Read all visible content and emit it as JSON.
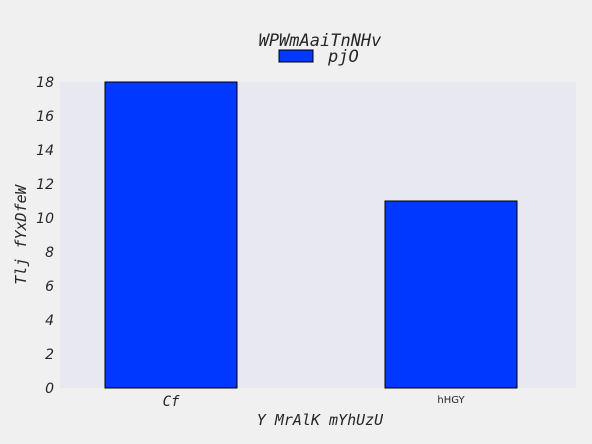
{
  "chart_data": {
    "type": "bar",
    "title": "WPWmAaiTnNHv",
    "xlabel": "Y MrAlK mYhUzU",
    "ylabel": "Tlj fYxDfeW",
    "categories": [
      "Cf",
      "hHGY"
    ],
    "series": [
      {
        "name": "pjO",
        "values": [
          18,
          11
        ],
        "color": "#0038ff"
      }
    ],
    "ylim": [
      0,
      18
    ],
    "yticks": [
      0,
      2,
      4,
      6,
      8,
      10,
      12,
      14,
      16,
      18
    ],
    "grid": false,
    "legend": "top-center",
    "plot_background": "#e8e8f0",
    "page_background": "#f0f0f0"
  }
}
